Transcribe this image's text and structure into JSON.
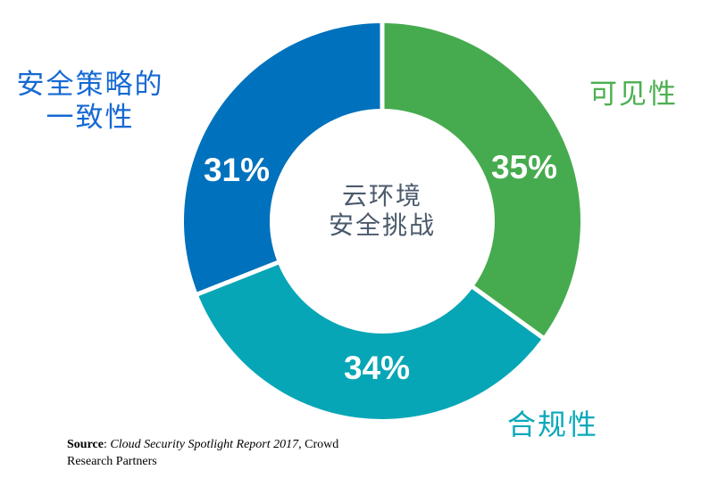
{
  "chart_data": {
    "type": "pie",
    "subtype": "donut",
    "title": "",
    "center_title": [
      "云环境",
      "安全挑战"
    ],
    "center_color": "#4A5A6B",
    "start_angle_deg": 0,
    "direction": "clockwise",
    "gap_color": "#FFFFFF",
    "value_label_color": "#FFFFFF",
    "segments": [
      {
        "id": "visibility",
        "label": "可见性",
        "value": 35,
        "pct_label": "35%",
        "color": "#46AB4E",
        "label_color": "#4CAF50"
      },
      {
        "id": "compliance",
        "label": "合规性",
        "value": 34,
        "pct_label": "34%",
        "color": "#06A6B6",
        "label_color": "#0BA8BA"
      },
      {
        "id": "security-policy-consistency",
        "label": "安全策略的一致性",
        "label_lines": [
          "安全策略的",
          "一致性"
        ],
        "value": 31,
        "pct_label": "31%",
        "color": "#0071BC",
        "label_color": "#1569D3"
      }
    ]
  },
  "source": {
    "bold": "Source",
    "sep": ": ",
    "italic": "Cloud Security Spotlight Report 2017",
    "rest": ", Crowd Research Partners"
  }
}
